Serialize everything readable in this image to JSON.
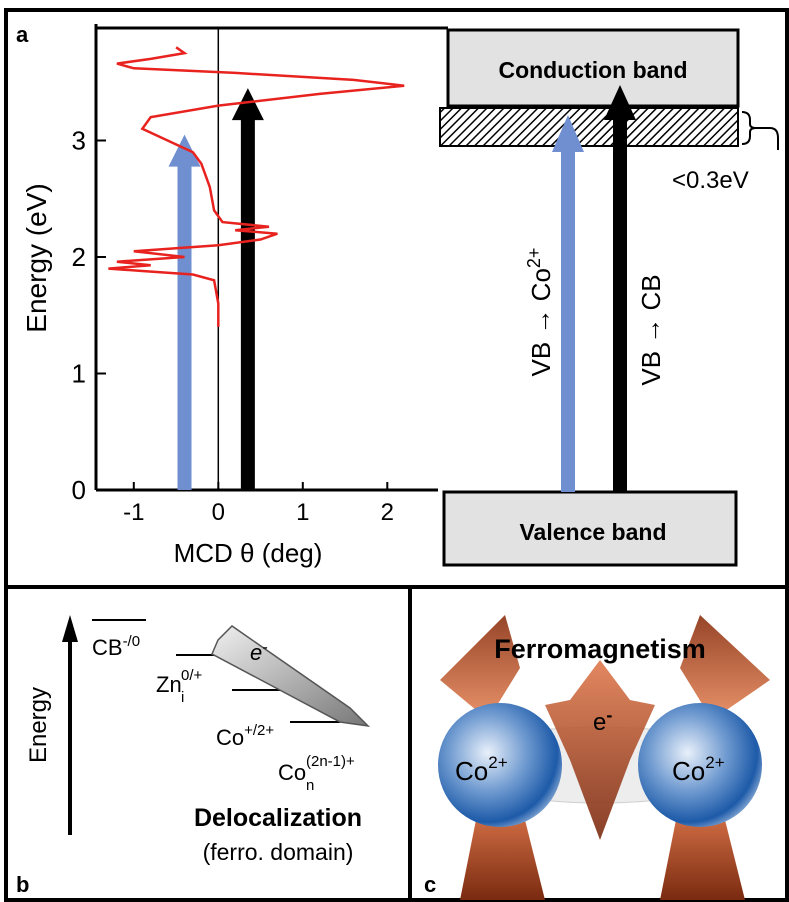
{
  "chart_data": {
    "type": "line",
    "panel_label": "a",
    "ylabel": "Energy (eV)",
    "xlabel": "MCD θ (deg)",
    "xlim": [
      -1.4,
      2.6
    ],
    "ylim": [
      0,
      4
    ],
    "xticks": [
      -1,
      0,
      1,
      2
    ],
    "yticks": [
      0,
      1,
      2,
      3
    ],
    "series": [
      {
        "color": "#e8231f",
        "x": [
          0,
          0,
          -0.05,
          -0.3,
          -0.9,
          -1.3,
          -0.8,
          -1.2,
          -0.4,
          -1.0,
          0,
          0.5,
          0.7,
          0.2,
          0.6,
          0.05,
          -0.05,
          -0.1,
          -0.2,
          -0.3,
          -0.6,
          -0.9,
          -0.8,
          0,
          1.2,
          2.2,
          1.6,
          0.2,
          -1.0,
          -1.2,
          -0.8,
          -0.4,
          -0.5
        ],
        "y": [
          1.4,
          1.6,
          1.8,
          1.85,
          1.88,
          1.9,
          1.93,
          1.96,
          2.0,
          2.05,
          2.1,
          2.15,
          2.2,
          2.23,
          2.26,
          2.3,
          2.4,
          2.6,
          2.8,
          2.9,
          3.0,
          3.1,
          3.2,
          3.3,
          3.4,
          3.47,
          3.52,
          3.58,
          3.62,
          3.66,
          3.7,
          3.75,
          3.8
        ]
      }
    ],
    "arrows": [
      {
        "color": "#6f8fd0",
        "x": -0.4,
        "y": 3.05
      },
      {
        "color": "#000000",
        "x": 0.35,
        "y": 3.45
      }
    ]
  },
  "band_diagram": {
    "conduction_band": "Conduction band",
    "valence_band": "Valence band",
    "gap_note": "<0.3eV",
    "transition_co": {
      "base": "VB → Co",
      "sup": "2+"
    },
    "transition_cb": "VB → CB"
  },
  "panel_b": {
    "label": "b",
    "axis": "Energy",
    "carrier": {
      "base": "e",
      "sup": "-"
    },
    "levels": [
      {
        "base": "CB",
        "sup": "-/0"
      },
      {
        "base": "Zn",
        "sub": "i",
        "sup": "0/+"
      },
      {
        "base": "Co",
        "sup": "+/2+"
      },
      {
        "base": "Co",
        "sub": "n",
        "sup": "(2n-1)+"
      }
    ],
    "caption": "Delocalization",
    "subcaption": "(ferro. domain)"
  },
  "panel_c": {
    "label": "c",
    "title": "Ferromagnetism",
    "carrier": {
      "base": "e",
      "sup": "-"
    },
    "ions": [
      {
        "base": "Co",
        "sup": "2+"
      },
      {
        "base": "Co",
        "sup": "2+"
      }
    ]
  }
}
